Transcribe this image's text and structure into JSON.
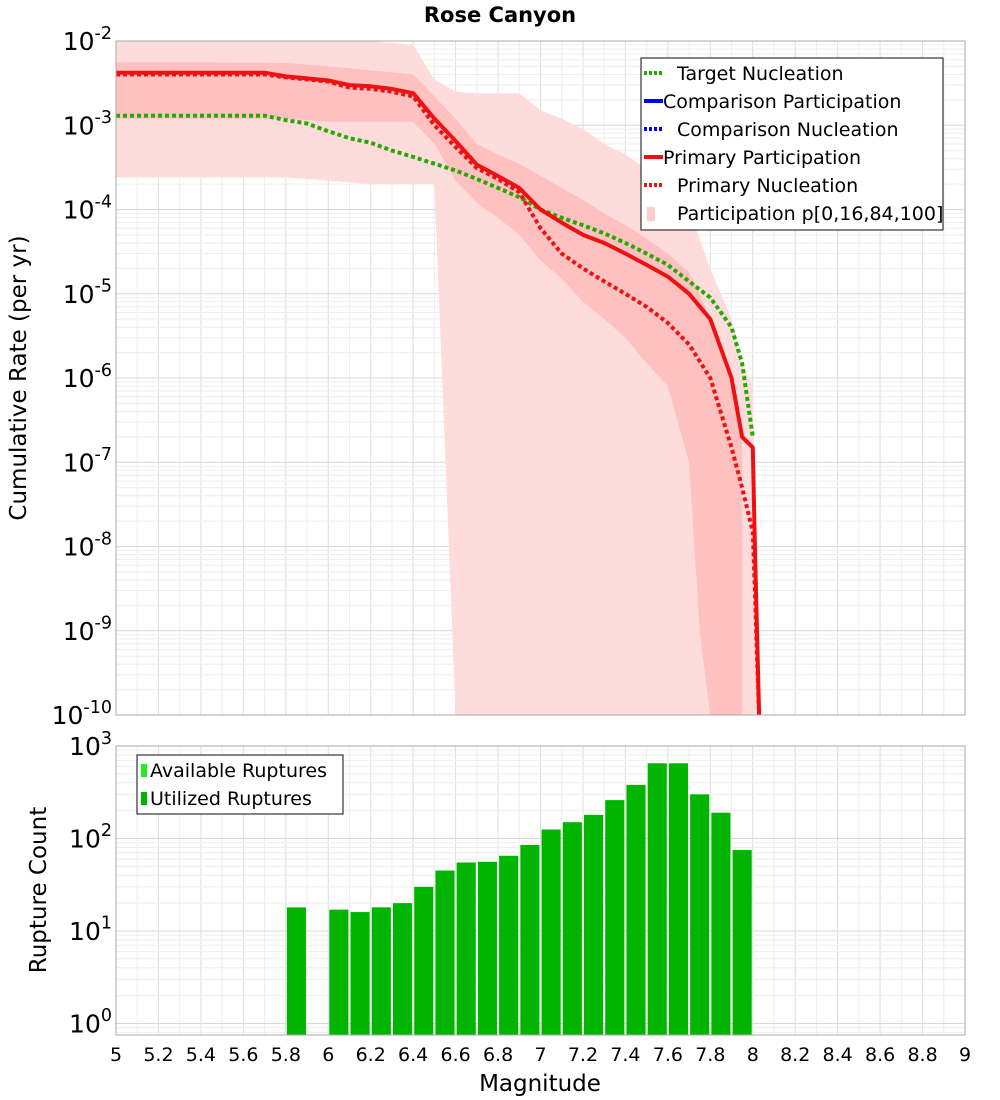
{
  "chart_data": [
    {
      "type": "line",
      "title": "Rose Canyon",
      "xlabel": "",
      "ylabel": "Cumulative Rate (per yr)",
      "xlim": [
        5,
        9
      ],
      "ylim": [
        1e-10,
        0.01
      ],
      "y_scale": "log",
      "grid": true,
      "legend_position": "top-right",
      "y_ticks": [
        "10^-10",
        "10^-9",
        "10^-8",
        "10^-7",
        "10^-6",
        "10^-5",
        "10^-4",
        "10^-3",
        "10^-2"
      ],
      "legend": [
        {
          "label": "Target Nucleation",
          "color": "#22aa00",
          "style": "dotted"
        },
        {
          "label": "Comparison Participation",
          "color": "#0000ee",
          "style": "solid"
        },
        {
          "label": "Comparison Nucleation",
          "color": "#0000ee",
          "style": "dotted"
        },
        {
          "label": "Primary Participation",
          "color": "#ee1111",
          "style": "solid"
        },
        {
          "label": "Primary Nucleation",
          "color": "#ee1111",
          "style": "dotted"
        },
        {
          "label": "Participation p[0,16,84,100]",
          "color": "#ffcccc",
          "style": "band"
        }
      ],
      "series": [
        {
          "name": "Target Nucleation",
          "color": "#22aa00",
          "style": "dotted",
          "x": [
            5.0,
            5.2,
            5.4,
            5.6,
            5.7,
            5.8,
            5.9,
            6.0,
            6.1,
            6.2,
            6.3,
            6.4,
            6.5,
            6.6,
            6.7,
            6.8,
            6.9,
            7.0,
            7.1,
            7.2,
            7.3,
            7.4,
            7.5,
            7.6,
            7.7,
            7.8,
            7.9,
            7.95,
            8.0
          ],
          "y": [
            0.0013,
            0.0013,
            0.0013,
            0.0013,
            0.0013,
            0.00115,
            0.00105,
            0.00085,
            0.0007,
            0.00062,
            0.0005,
            0.00042,
            0.00035,
            0.00029,
            0.00023,
            0.00018,
            0.00014,
            0.0001,
            8e-05,
            6.5e-05,
            5.2e-05,
            4e-05,
            3e-05,
            2.2e-05,
            1.4e-05,
            9e-06,
            4e-06,
            1.5e-06,
            2e-07
          ]
        },
        {
          "name": "Primary Participation",
          "color": "#ee1111",
          "style": "solid",
          "x": [
            5.0,
            5.2,
            5.4,
            5.6,
            5.7,
            5.8,
            5.9,
            6.0,
            6.1,
            6.2,
            6.3,
            6.4,
            6.5,
            6.6,
            6.7,
            6.8,
            6.9,
            7.0,
            7.1,
            7.2,
            7.3,
            7.4,
            7.5,
            7.6,
            7.7,
            7.8,
            7.9,
            7.95,
            8.0,
            8.01,
            8.02,
            8.03
          ],
          "y": [
            0.0042,
            0.0042,
            0.0042,
            0.0042,
            0.0042,
            0.0038,
            0.0036,
            0.0034,
            0.003,
            0.0029,
            0.0027,
            0.0024,
            0.0012,
            0.00065,
            0.00034,
            0.00025,
            0.00018,
            0.0001,
            7e-05,
            5e-05,
            4e-05,
            3e-05,
            2.2e-05,
            1.6e-05,
            1e-05,
            5e-06,
            1e-06,
            2e-07,
            1.5e-07,
            1e-08,
            1e-09,
            1e-10
          ]
        },
        {
          "name": "Primary Nucleation",
          "color": "#ee1111",
          "style": "dotted",
          "x": [
            5.0,
            5.2,
            5.4,
            5.6,
            5.7,
            5.8,
            5.9,
            6.0,
            6.1,
            6.2,
            6.3,
            6.4,
            6.5,
            6.6,
            6.7,
            6.8,
            6.9,
            7.0,
            7.1,
            7.2,
            7.3,
            7.4,
            7.5,
            7.6,
            7.7,
            7.8,
            7.9,
            7.95,
            8.0,
            8.01,
            8.02,
            8.03
          ],
          "y": [
            0.004,
            0.004,
            0.004,
            0.004,
            0.004,
            0.0037,
            0.0035,
            0.0033,
            0.0028,
            0.0027,
            0.0025,
            0.0022,
            0.001,
            0.00055,
            0.00031,
            0.00023,
            0.00016,
            6e-05,
            3e-05,
            2e-05,
            1.4e-05,
            1e-05,
            7e-06,
            4.5e-06,
            2.5e-06,
            1e-06,
            1.5e-07,
            5e-08,
            1.5e-08,
            3e-09,
            5e-10,
            1e-10
          ]
        }
      ],
      "bands": [
        {
          "name": "p0-p100",
          "color": "#ffdcdc",
          "x": [
            5.0,
            5.4,
            5.8,
            5.9,
            6.0,
            6.2,
            6.4,
            6.5,
            6.6,
            6.7,
            6.8,
            6.9,
            7.0,
            7.1,
            7.2,
            7.3,
            7.4,
            7.5,
            7.6,
            7.7,
            7.8,
            7.9,
            7.95,
            8.0,
            8.03
          ],
          "upper": [
            0.01,
            0.01,
            0.01,
            0.01,
            0.01,
            0.01,
            0.009,
            0.0035,
            0.0025,
            0.0024,
            0.0024,
            0.0024,
            0.0015,
            0.0012,
            0.0009,
            0.0006,
            0.00045,
            0.0003,
            0.0002,
            0.0001,
            2e-05,
            5e-06,
            1.5e-06,
            8e-07,
            1e-10
          ],
          "lower": [
            0.00024,
            0.00024,
            0.00024,
            0.00023,
            0.00022,
            0.0002,
            0.0002,
            0.0002,
            1e-10,
            1e-10,
            1e-10,
            1e-10,
            1e-10,
            1e-10,
            1e-10,
            1e-10,
            1e-10,
            1e-10,
            1e-10,
            1e-10,
            1e-10,
            1e-10,
            1e-10,
            1e-10,
            1e-10
          ]
        },
        {
          "name": "p16-p84",
          "color": "#ffc0c0",
          "x": [
            5.0,
            5.4,
            5.8,
            6.0,
            6.2,
            6.4,
            6.5,
            6.6,
            6.7,
            6.8,
            6.9,
            7.0,
            7.1,
            7.2,
            7.3,
            7.4,
            7.5,
            7.6,
            7.7,
            7.75,
            7.8,
            7.9,
            7.95
          ],
          "upper": [
            0.0056,
            0.0056,
            0.0055,
            0.005,
            0.0045,
            0.004,
            0.0022,
            0.0012,
            0.0006,
            0.00045,
            0.00035,
            0.00025,
            0.00018,
            0.00013,
            9e-05,
            6.5e-05,
            4.5e-05,
            3e-05,
            1.8e-05,
            1e-05,
            5e-06,
            1e-06,
            2e-07
          ],
          "lower": [
            0.0012,
            0.0012,
            0.0012,
            0.0011,
            0.0011,
            0.0011,
            0.0006,
            0.00022,
            0.00012,
            8e-05,
            5e-05,
            2.5e-05,
            1.5e-05,
            8e-06,
            5e-06,
            3e-06,
            1.5e-06,
            8e-07,
            1e-07,
            1e-09,
            1e-10,
            1e-10,
            1e-10
          ]
        }
      ]
    },
    {
      "type": "bar",
      "xlabel": "Magnitude",
      "ylabel": "Rupture Count",
      "xlim": [
        5,
        9
      ],
      "ylim": [
        0.75,
        1000
      ],
      "y_scale": "log",
      "grid": true,
      "legend_position": "top-left",
      "y_ticks": [
        "10^0",
        "10^1",
        "10^2",
        "10^3"
      ],
      "x_ticks": [
        "5",
        "5.2",
        "5.4",
        "5.6",
        "5.8",
        "6",
        "6.2",
        "6.4",
        "6.6",
        "6.8",
        "7",
        "7.2",
        "7.4",
        "7.6",
        "7.8",
        "8",
        "8.2",
        "8.4",
        "8.6",
        "8.8",
        "9"
      ],
      "legend": [
        {
          "label": "Available Ruptures",
          "color": "#22ee22"
        },
        {
          "label": "Utilized Ruptures",
          "color": "#00b400"
        }
      ],
      "series": [
        {
          "name": "Utilized Ruptures",
          "color": "#00b400",
          "x": [
            5.85,
            6.05,
            6.15,
            6.25,
            6.35,
            6.45,
            6.55,
            6.65,
            6.75,
            6.85,
            6.95,
            7.05,
            7.15,
            7.25,
            7.35,
            7.45,
            7.55,
            7.65,
            7.75,
            7.85,
            7.95
          ],
          "values": [
            18,
            17,
            16,
            18,
            20,
            30,
            45,
            55,
            56,
            65,
            85,
            125,
            150,
            180,
            260,
            380,
            650,
            650,
            300,
            190,
            75
          ]
        }
      ]
    }
  ]
}
